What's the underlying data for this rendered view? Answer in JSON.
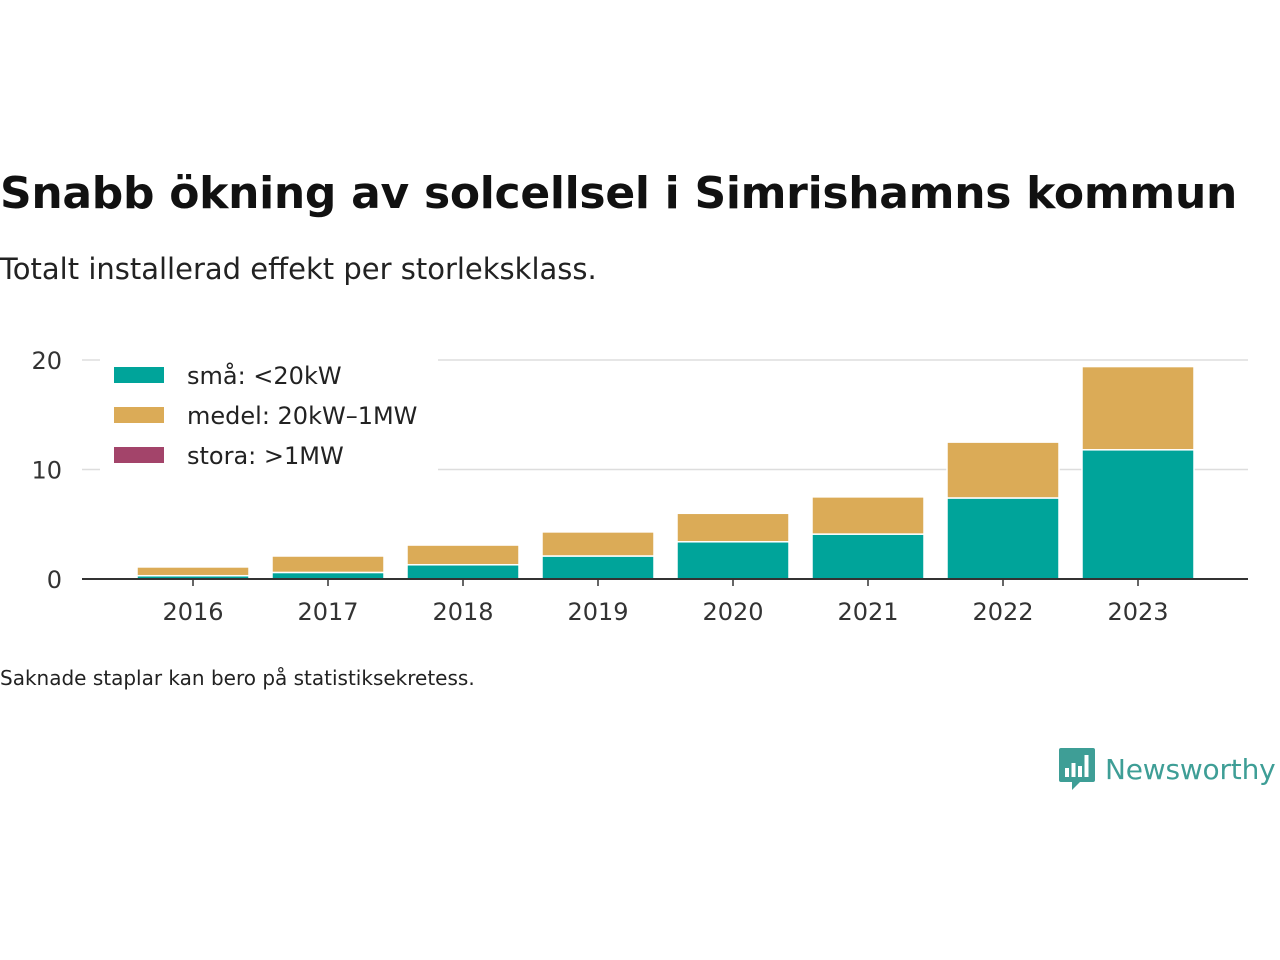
{
  "title": "Snabb ökning av solcellsel i Simrishamns kommun",
  "subtitle": "Totalt installerad effekt per storleksklass.",
  "footnote": "Saknade staplar kan bero på statistiksekretess.",
  "brand": {
    "name": "Newsworthy",
    "icon": "newsworthy-logo-icon",
    "color": "#3e9e96"
  },
  "chart_data": {
    "type": "bar",
    "stacked": true,
    "categories": [
      "2016",
      "2017",
      "2018",
      "2019",
      "2020",
      "2021",
      "2022",
      "2023"
    ],
    "series": [
      {
        "name": "små: <20kW",
        "color": "#00a49a",
        "values": [
          0.3,
          0.6,
          1.3,
          2.1,
          3.4,
          4.1,
          7.4,
          11.8
        ]
      },
      {
        "name": "medel: 20kW–1MW",
        "color": "#dbab57",
        "values": [
          0.8,
          1.5,
          1.8,
          2.2,
          2.6,
          3.4,
          5.1,
          7.6
        ]
      },
      {
        "name": "stora: >1MW",
        "color": "#a3446a",
        "values": [
          0,
          0,
          0,
          0,
          0,
          0,
          0,
          0
        ]
      }
    ],
    "ylim": [
      0,
      20
    ],
    "yticks": [
      0,
      10,
      20
    ],
    "xlabel": "",
    "ylabel": "",
    "grid": true,
    "legend_position": "top-left"
  }
}
